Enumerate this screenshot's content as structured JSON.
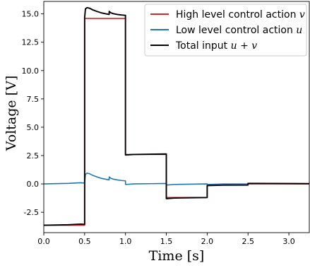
{
  "chart_data": {
    "type": "line",
    "xlabel": "Time [s]",
    "ylabel": "Voltage [V]",
    "xlim": [
      0.0,
      3.25
    ],
    "ylim": [
      -4.3,
      16.1
    ],
    "xticks": [
      {
        "v": 0.0,
        "label": "0.0"
      },
      {
        "v": 0.5,
        "label": "0.5"
      },
      {
        "v": 1.0,
        "label": "1.0"
      },
      {
        "v": 1.5,
        "label": "1.5"
      },
      {
        "v": 2.0,
        "label": "2.0"
      },
      {
        "v": 2.5,
        "label": "2.5"
      },
      {
        "v": 3.0,
        "label": "3.0"
      }
    ],
    "yticks": [
      {
        "v": -2.5,
        "label": "-2.5"
      },
      {
        "v": 0.0,
        "label": "0.0"
      },
      {
        "v": 2.5,
        "label": "2.5"
      },
      {
        "v": 5.0,
        "label": "5.0"
      },
      {
        "v": 7.5,
        "label": "7.5"
      },
      {
        "v": 10.0,
        "label": "10.0"
      },
      {
        "v": 12.5,
        "label": "12.5"
      },
      {
        "v": 15.0,
        "label": "15.0"
      }
    ],
    "grid": false,
    "legend_position": "top-right",
    "series": [
      {
        "name": "High level control action",
        "legend_math": "v",
        "color": "#d62728",
        "x": [
          0.0,
          0.5,
          0.5,
          1.0,
          1.0,
          1.5,
          1.5,
          2.0,
          2.0,
          2.5,
          2.5,
          3.25
        ],
        "y": [
          -3.65,
          -3.65,
          14.6,
          14.6,
          2.6,
          2.6,
          -1.2,
          -1.2,
          -0.1,
          -0.1,
          0.0,
          0.0
        ]
      },
      {
        "name": "Low level control action",
        "legend_math": "u",
        "color": "#1f77b4",
        "x": [
          0.0,
          0.3,
          0.45,
          0.5,
          0.51,
          0.53,
          0.56,
          0.6,
          0.65,
          0.7,
          0.75,
          0.8,
          0.801,
          0.82,
          0.85,
          0.9,
          0.95,
          1.0,
          1.001,
          1.1,
          1.3,
          1.5,
          1.501,
          1.6,
          1.8,
          2.0,
          2.001,
          2.2,
          2.5,
          2.501,
          3.25
        ],
        "y": [
          0.0,
          0.05,
          0.1,
          0.08,
          0.85,
          0.95,
          0.9,
          0.75,
          0.62,
          0.5,
          0.42,
          0.35,
          0.62,
          0.5,
          0.42,
          0.35,
          0.3,
          0.27,
          -0.05,
          0.0,
          0.02,
          0.04,
          -0.1,
          -0.05,
          -0.02,
          0.0,
          -0.05,
          -0.01,
          0.0,
          0.05,
          0.02
        ]
      },
      {
        "name": "Total input",
        "legend_math": "u + v",
        "color": "#000000",
        "x": [
          0.0,
          0.3,
          0.45,
          0.5,
          0.5,
          0.51,
          0.53,
          0.56,
          0.6,
          0.65,
          0.7,
          0.75,
          0.8,
          0.801,
          0.82,
          0.85,
          0.9,
          0.95,
          1.0,
          1.0,
          1.1,
          1.3,
          1.5,
          1.5,
          1.6,
          1.8,
          2.0,
          2.0,
          2.2,
          2.5,
          2.5,
          3.25
        ],
        "y": [
          -3.65,
          -3.6,
          -3.55,
          -3.57,
          14.68,
          15.45,
          15.55,
          15.5,
          15.35,
          15.22,
          15.1,
          15.02,
          14.95,
          15.22,
          15.1,
          15.02,
          14.95,
          14.9,
          14.87,
          2.55,
          2.6,
          2.62,
          2.64,
          -1.3,
          -1.25,
          -1.22,
          -1.2,
          -0.15,
          -0.11,
          -0.1,
          0.05,
          0.02
        ]
      }
    ],
    "legend_labels": [
      "High level control action",
      "Low level control action",
      "Total input"
    ]
  }
}
